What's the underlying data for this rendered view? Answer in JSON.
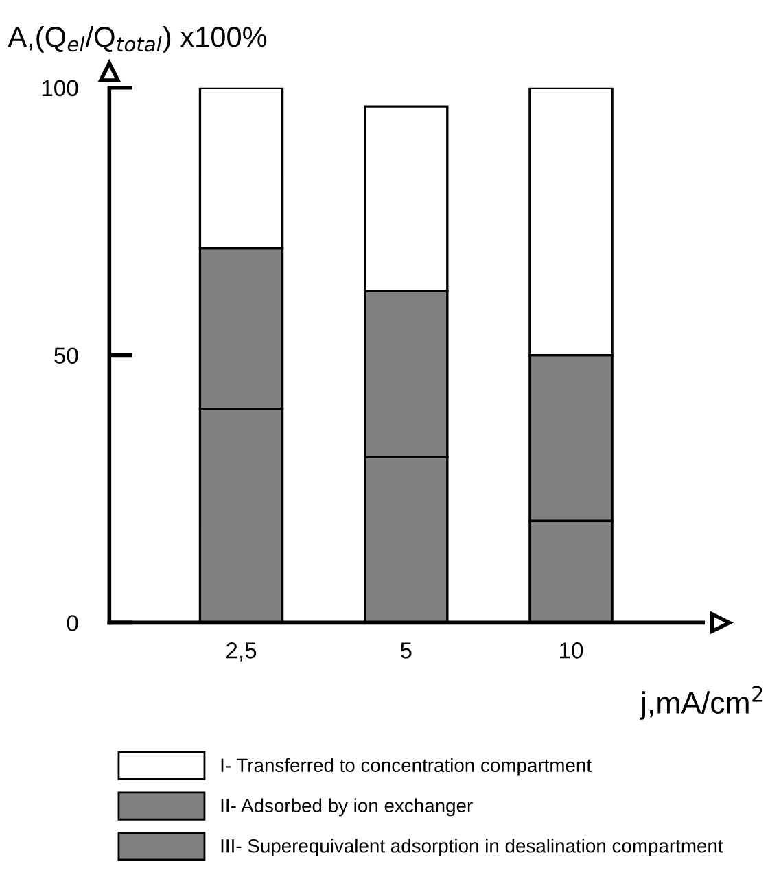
{
  "chart_data": {
    "type": "bar",
    "stacked": true,
    "ylabel": "A,(Q$_{el}$/Q$_{total}$) x100%",
    "xlabel": "j,mA/cm$^{2}$",
    "categories": [
      "2,5",
      "5",
      "10"
    ],
    "series": [
      {
        "name": "III- Superequivalent adsorption in desalination compartment",
        "color": "#808080",
        "values": [
          40,
          31,
          19
        ]
      },
      {
        "name": "II- Adsorbed by ion exchanger",
        "color": "#808080",
        "values": [
          30,
          31,
          31
        ]
      },
      {
        "name": "I- Transferred to concentration compartment",
        "color": "#ffffff",
        "values": [
          30,
          34.5,
          50
        ]
      }
    ],
    "ylim": [
      0,
      100
    ],
    "yticks": [
      0,
      50,
      100
    ],
    "grid": false,
    "legend": "bottom"
  }
}
